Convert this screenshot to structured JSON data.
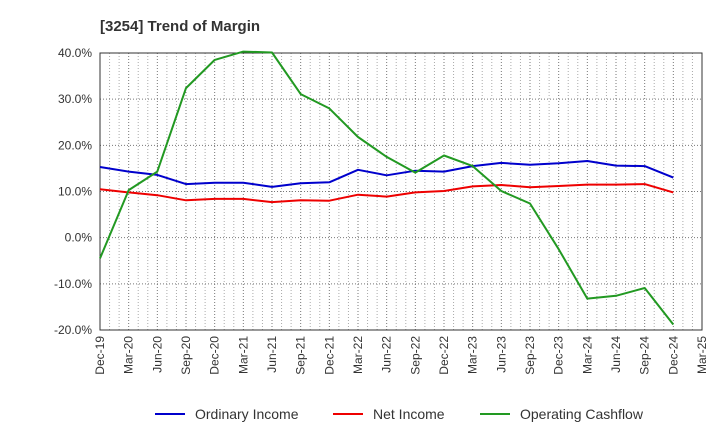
{
  "chart_data": {
    "type": "line",
    "title": "[3254]  Trend of Margin",
    "xlabel": "",
    "ylabel": "",
    "ylim": [
      -20,
      40
    ],
    "yticks": [
      40,
      30,
      20,
      10,
      0,
      -10,
      -20
    ],
    "ytick_labels": [
      "40.0%",
      "30.0%",
      "20.0%",
      "10.0%",
      "0.0%",
      "-10.0%",
      "-20.0%"
    ],
    "x_axis_labels": [
      "Dec-19",
      "Mar-20",
      "Jun-20",
      "Sep-20",
      "Dec-20",
      "Mar-21",
      "Jun-21",
      "Sep-21",
      "Dec-21",
      "Mar-22",
      "Jun-22",
      "Sep-22",
      "Dec-22",
      "Mar-23",
      "Jun-23",
      "Sep-23",
      "Dec-23",
      "Mar-24",
      "Jun-24",
      "Sep-24",
      "Dec-24",
      "Mar-25"
    ],
    "x": [
      "Dec-19",
      "Mar-20",
      "Jun-20",
      "Sep-20",
      "Dec-20",
      "Mar-21",
      "Jun-21",
      "Sep-21",
      "Dec-21",
      "Mar-22",
      "Jun-22",
      "Sep-22",
      "Dec-22",
      "Mar-23",
      "Jun-23",
      "Sep-23",
      "Dec-23",
      "Mar-24",
      "Jun-24",
      "Sep-24",
      "Dec-24"
    ],
    "grid": true,
    "grid_style": "dotted",
    "legend_position": "bottom",
    "series": [
      {
        "name": "Ordinary Income",
        "color": "#0000cc",
        "values": [
          15.3,
          14.3,
          13.6,
          11.6,
          11.9,
          11.9,
          11.0,
          11.8,
          12.0,
          14.7,
          13.5,
          14.5,
          14.3,
          15.5,
          16.2,
          15.8,
          16.1,
          16.6,
          15.6,
          15.5,
          13.0
        ]
      },
      {
        "name": "Net Income",
        "color": "#ee0000",
        "values": [
          10.5,
          9.8,
          9.2,
          8.1,
          8.4,
          8.4,
          7.7,
          8.1,
          8.0,
          9.3,
          8.9,
          9.8,
          10.1,
          11.1,
          11.4,
          10.9,
          11.2,
          11.5,
          11.5,
          11.6,
          9.8
        ]
      },
      {
        "name": "Operating Cashflow",
        "color": "#229922",
        "values": [
          -4.5,
          10.3,
          14.3,
          32.4,
          38.5,
          40.3,
          40.1,
          31.1,
          28.0,
          21.8,
          17.5,
          14.1,
          17.8,
          15.5,
          10.1,
          7.4,
          -2.5,
          -13.2,
          -12.6,
          -10.9,
          -18.8
        ]
      }
    ]
  }
}
